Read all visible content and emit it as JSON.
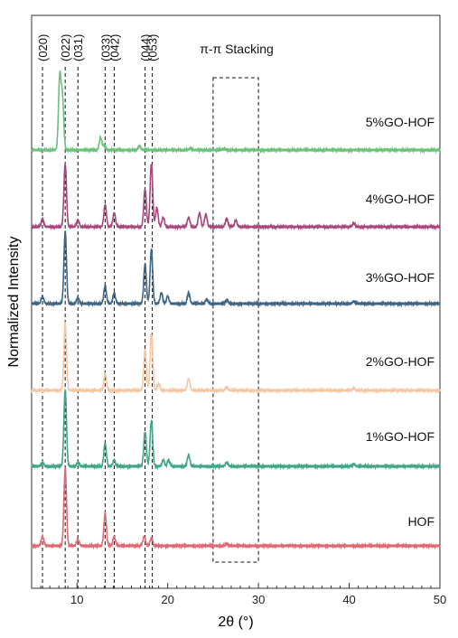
{
  "chart_data": {
    "type": "line",
    "xlabel": "2θ (°)",
    "ylabel": "Normalized Intensity",
    "xlim": [
      5,
      50
    ],
    "xticks": [
      10,
      20,
      30,
      40,
      50
    ],
    "plane_labels": [
      {
        "label": "(020)",
        "x": 6.2
      },
      {
        "label": "(022)",
        "x": 8.7
      },
      {
        "label": "(031)",
        "x": 10.1
      },
      {
        "label": "(033)",
        "x": 13.1
      },
      {
        "label": "(042)",
        "x": 14.1
      },
      {
        "label": "(044)",
        "x": 17.5
      },
      {
        "label": "(053)",
        "x": 18.3
      }
    ],
    "annotation": {
      "text": "π-π Stacking",
      "x_range": [
        25,
        30
      ]
    },
    "series": [
      {
        "name": "5%GO-HOF",
        "color": "#6cc27a",
        "peaks": [
          [
            8.1,
            1.0
          ],
          [
            8.4,
            0.7
          ],
          [
            12.6,
            0.17
          ],
          [
            13.0,
            0.06
          ],
          [
            16.9,
            0.05
          ],
          [
            22.5,
            0.02
          ],
          [
            26.2,
            0.015
          ]
        ]
      },
      {
        "name": "4%GO-HOF",
        "color": "#a8457c",
        "peaks": [
          [
            6.2,
            0.12
          ],
          [
            8.7,
            1.0
          ],
          [
            10.1,
            0.1
          ],
          [
            13.1,
            0.35
          ],
          [
            14.1,
            0.22
          ],
          [
            17.5,
            0.6
          ],
          [
            18.2,
            1.0
          ],
          [
            18.8,
            0.3
          ],
          [
            19.5,
            0.15
          ],
          [
            22.3,
            0.15
          ],
          [
            23.5,
            0.22
          ],
          [
            24.2,
            0.2
          ],
          [
            26.5,
            0.13
          ],
          [
            27.5,
            0.1
          ],
          [
            40.5,
            0.06
          ]
        ]
      },
      {
        "name": "3%GO-HOF",
        "color": "#3f6585",
        "peaks": [
          [
            6.2,
            0.1
          ],
          [
            8.7,
            1.0
          ],
          [
            10.1,
            0.08
          ],
          [
            13.1,
            0.25
          ],
          [
            14.1,
            0.15
          ],
          [
            17.5,
            0.55
          ],
          [
            18.2,
            0.75
          ],
          [
            19.3,
            0.15
          ],
          [
            20.0,
            0.1
          ],
          [
            22.3,
            0.15
          ],
          [
            24.3,
            0.06
          ],
          [
            26.5,
            0.05
          ],
          [
            40.5,
            0.03
          ]
        ]
      },
      {
        "name": "2%GO-HOF",
        "color": "#f7c6a3",
        "peaks": [
          [
            8.7,
            1.0
          ],
          [
            13.1,
            0.25
          ],
          [
            17.5,
            0.6
          ],
          [
            18.2,
            0.85
          ],
          [
            19.0,
            0.1
          ],
          [
            22.3,
            0.18
          ],
          [
            26.5,
            0.04
          ],
          [
            40.5,
            0.03
          ]
        ]
      },
      {
        "name": "1%GO-HOF",
        "color": "#3fa883",
        "peaks": [
          [
            6.2,
            0.05
          ],
          [
            8.7,
            1.0
          ],
          [
            10.1,
            0.05
          ],
          [
            13.1,
            0.3
          ],
          [
            14.1,
            0.08
          ],
          [
            17.5,
            0.45
          ],
          [
            18.2,
            0.6
          ],
          [
            19.5,
            0.08
          ],
          [
            20.1,
            0.08
          ],
          [
            22.3,
            0.15
          ],
          [
            26.5,
            0.05
          ],
          [
            40.5,
            0.03
          ]
        ]
      },
      {
        "name": "HOF",
        "color": "#e06870",
        "peaks": [
          [
            6.2,
            0.12
          ],
          [
            8.7,
            1.0
          ],
          [
            10.1,
            0.08
          ],
          [
            13.1,
            0.42
          ],
          [
            14.1,
            0.12
          ],
          [
            17.4,
            0.12
          ],
          [
            18.2,
            0.1
          ],
          [
            26.5,
            0.03
          ]
        ]
      }
    ]
  }
}
